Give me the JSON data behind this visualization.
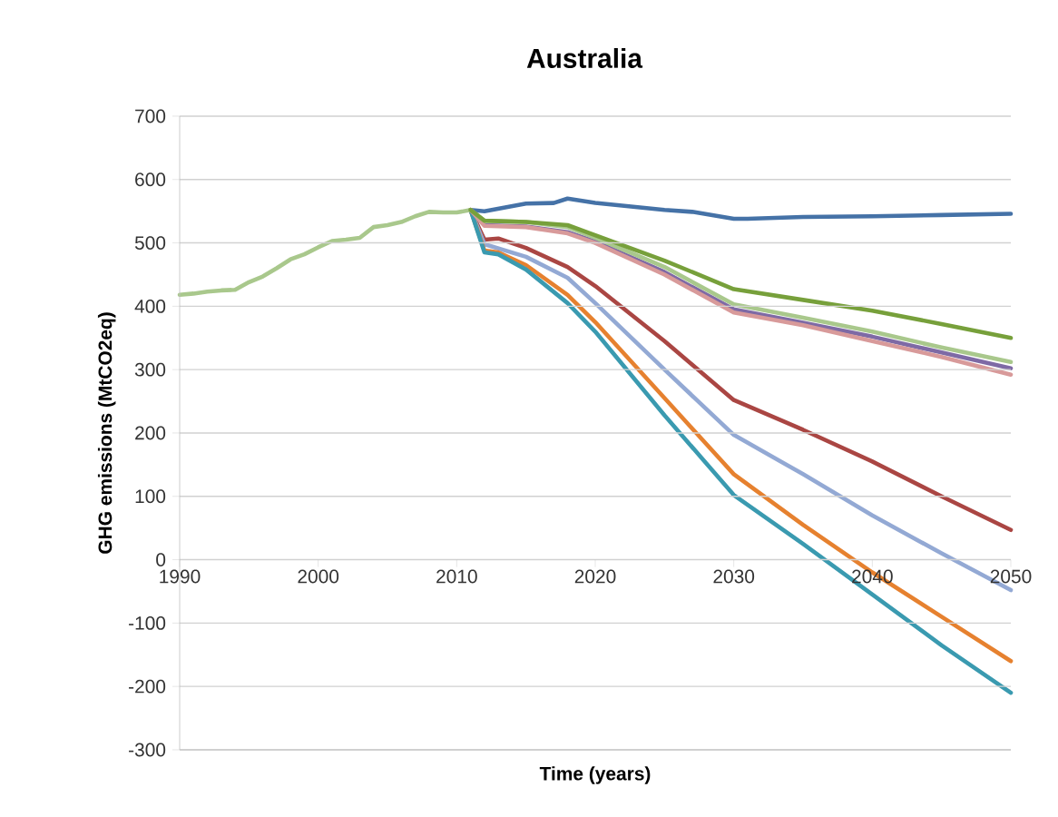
{
  "chart_data": {
    "type": "line",
    "title": "Australia",
    "xlabel": "Time (years)",
    "ylabel": "GHG emissions (MtCO2eq)",
    "xlim": [
      1990,
      2050
    ],
    "ylim": [
      -300,
      700
    ],
    "xticks": [
      1990,
      2000,
      2010,
      2020,
      2030,
      2040,
      2050
    ],
    "yticks": [
      -300,
      -200,
      -100,
      0,
      100,
      200,
      300,
      400,
      500,
      600,
      700
    ],
    "grid": "y",
    "series": [
      {
        "color": "#4572a7",
        "x": [
          2011,
          2012,
          2015,
          2017,
          2018,
          2020,
          2025,
          2027,
          2030,
          2031,
          2035,
          2040,
          2045,
          2050
        ],
        "values": [
          552,
          550,
          562,
          563,
          570,
          563,
          552,
          549,
          538,
          538,
          541,
          542,
          544,
          546
        ]
      },
      {
        "color": "#aa4643",
        "x": [
          2011,
          2012,
          2013,
          2015,
          2018,
          2020,
          2025,
          2030,
          2035,
          2040,
          2045,
          2050
        ],
        "values": [
          552,
          505,
          507,
          492,
          462,
          432,
          345,
          252,
          205,
          155,
          100,
          47
        ]
      },
      {
        "color": "#93a9d4",
        "x": [
          2011,
          2012,
          2015,
          2018,
          2020,
          2025,
          2030,
          2035,
          2040,
          2045,
          2050
        ],
        "values": [
          552,
          498,
          478,
          445,
          405,
          300,
          197,
          135,
          70,
          10,
          -48
        ]
      },
      {
        "color": "#e6812f",
        "x": [
          2011,
          2012,
          2013,
          2015,
          2018,
          2020,
          2025,
          2030,
          2035,
          2040,
          2045,
          2050
        ],
        "values": [
          552,
          488,
          485,
          465,
          418,
          375,
          255,
          135,
          55,
          -20,
          -90,
          -160
        ]
      },
      {
        "color": "#3a9ab0",
        "x": [
          2011,
          2012,
          2013,
          2015,
          2018,
          2020,
          2025,
          2030,
          2035,
          2040,
          2045,
          2050
        ],
        "values": [
          552,
          485,
          482,
          458,
          405,
          360,
          228,
          102,
          25,
          -55,
          -135,
          -210
        ]
      },
      {
        "color": "#7e6aa5",
        "x": [
          2011,
          2012,
          2015,
          2018,
          2020,
          2025,
          2030,
          2035,
          2040,
          2045,
          2050
        ],
        "values": [
          552,
          528,
          526,
          517,
          502,
          454,
          395,
          374,
          352,
          327,
          302
        ]
      },
      {
        "color": "#d89a9a",
        "x": [
          2011,
          2012,
          2015,
          2018,
          2020,
          2025,
          2030,
          2035,
          2040,
          2045,
          2050
        ],
        "values": [
          552,
          527,
          525,
          515,
          500,
          450,
          390,
          370,
          345,
          320,
          292
        ]
      },
      {
        "color": "#a9c88c",
        "x": [
          1990,
          1991,
          1992,
          1993,
          1994,
          1995,
          1996,
          1997,
          1998,
          1999,
          2000,
          2001,
          2002,
          2003,
          2004,
          2005,
          2006,
          2007,
          2008,
          2009,
          2010,
          2011,
          2012,
          2015,
          2018,
          2020,
          2025,
          2030,
          2035,
          2040,
          2045,
          2050
        ],
        "values": [
          418,
          420,
          423,
          425,
          426,
          438,
          447,
          460,
          474,
          482,
          493,
          503,
          505,
          508,
          525,
          528,
          533,
          542,
          549,
          548,
          548,
          552,
          535,
          533,
          525,
          508,
          462,
          403,
          382,
          360,
          335,
          312
        ]
      },
      {
        "color": "#77a03b",
        "x": [
          2011,
          2012,
          2015,
          2018,
          2020,
          2025,
          2030,
          2035,
          2040,
          2045,
          2050
        ],
        "values": [
          552,
          535,
          533,
          528,
          512,
          472,
          427,
          410,
          393,
          372,
          350
        ]
      }
    ]
  }
}
